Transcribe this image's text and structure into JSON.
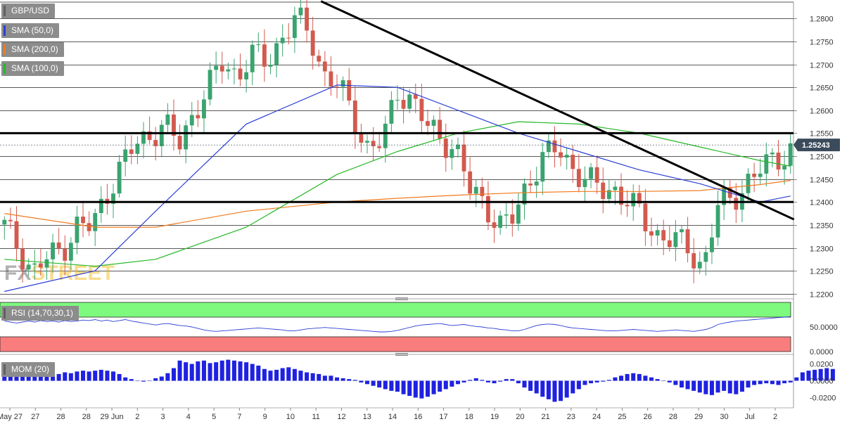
{
  "legend": {
    "symbol": "GBP/USD",
    "sma50": "SMA (50,0)",
    "sma200": "SMA (200,0)",
    "sma100": "SMA (100,0)",
    "rsi": "RSI (14,70,30,1)",
    "mom": "MOM (20)"
  },
  "colors": {
    "up": "#3aa36f",
    "down": "#d25a4e",
    "sma50": "#2b3fd6",
    "sma200": "#f07a1e",
    "sma100": "#25b825",
    "rsi_line": "#2b3fd6",
    "overbought": "#7dfa7d",
    "oversold": "#fa7d7d",
    "mom": "#1f22e0",
    "price_tag": "#3b4b5b"
  },
  "watermark": {
    "part1": "FX",
    "part2": "STREET"
  },
  "chart_data": [
    {
      "type": "candlestick",
      "title": "GBP/USD",
      "ylim": [
        1.2195,
        1.2825
      ],
      "yticks": [
        "1.2800",
        "1.2750",
        "1.2700",
        "1.2650",
        "1.2600",
        "1.2550",
        "1.2500",
        "1.2450",
        "1.2400",
        "1.2350",
        "1.2300",
        "1.2250",
        "1.2200"
      ],
      "x_labels": [
        "May 27",
        "27",
        "28",
        "28",
        "29 Jun",
        "2",
        "3",
        "4",
        "5",
        "7",
        "9",
        "10",
        "11",
        "12",
        "13",
        "14",
        "16",
        "17",
        "18",
        "19",
        "20",
        "21",
        "23",
        "24",
        "25",
        "26",
        "28",
        "29",
        "30",
        "Jul",
        "2"
      ],
      "last_price": "1.25243",
      "horizontal_levels": [
        1.255,
        1.24
      ],
      "trendline": {
        "from": [
          0,
          1.283
        ],
        "to": [
          130,
          1.2362
        ]
      },
      "price_path": [
        1.2345,
        1.23,
        1.225,
        1.2275,
        1.23,
        1.235,
        1.234,
        1.242,
        1.248,
        1.252,
        1.255,
        1.257,
        1.252,
        1.26,
        1.265,
        1.27,
        1.268,
        1.272,
        1.27,
        1.276,
        1.28,
        1.276,
        1.268,
        1.265,
        1.258,
        1.252,
        1.253,
        1.264,
        1.263,
        1.256,
        1.254,
        1.252,
        1.242,
        1.24,
        1.235,
        1.236,
        1.245,
        1.25,
        1.251,
        1.248,
        1.245,
        1.242,
        1.243,
        1.24,
        1.235,
        1.233,
        1.232,
        1.229,
        1.2265,
        1.239,
        1.24,
        1.245,
        1.247,
        1.249,
        1.252
      ],
      "sma50": [
        [
          0,
          1.2205
        ],
        [
          15,
          1.225
        ],
        [
          25,
          1.238
        ],
        [
          40,
          1.257
        ],
        [
          55,
          1.2655
        ],
        [
          65,
          1.265
        ],
        [
          75,
          1.26
        ],
        [
          85,
          1.255
        ],
        [
          95,
          1.251
        ],
        [
          105,
          1.247
        ],
        [
          115,
          1.244
        ],
        [
          125,
          1.24
        ],
        [
          130,
          1.2413
        ]
      ],
      "sma100": [
        [
          0,
          1.2275
        ],
        [
          15,
          1.226
        ],
        [
          25,
          1.2275
        ],
        [
          40,
          1.2345
        ],
        [
          55,
          1.246
        ],
        [
          65,
          1.251
        ],
        [
          75,
          1.255
        ],
        [
          85,
          1.2575
        ],
        [
          95,
          1.257
        ],
        [
          105,
          1.255
        ],
        [
          115,
          1.252
        ],
        [
          125,
          1.249
        ],
        [
          130,
          1.2478
        ]
      ],
      "sma200": [
        [
          0,
          1.2375
        ],
        [
          15,
          1.2345
        ],
        [
          25,
          1.2345
        ],
        [
          40,
          1.238
        ],
        [
          55,
          1.24
        ],
        [
          65,
          1.2408
        ],
        [
          75,
          1.2415
        ],
        [
          85,
          1.242
        ],
        [
          95,
          1.2423
        ],
        [
          105,
          1.2423
        ],
        [
          115,
          1.2425
        ],
        [
          125,
          1.2438
        ],
        [
          130,
          1.2447
        ]
      ]
    },
    {
      "type": "line",
      "title": "RSI (14,70,30,1)",
      "ylim": [
        0,
        100
      ],
      "yticks": [
        "50.0000",
        "0.0000"
      ],
      "bands": {
        "overbought": [
          70,
          100
        ],
        "oversold": [
          0,
          30
        ]
      },
      "values": [
        62,
        60,
        58,
        60,
        62,
        60,
        63,
        61,
        62,
        60,
        63,
        61,
        62,
        64,
        63,
        65,
        62,
        64,
        61,
        63,
        65,
        62,
        60,
        58,
        56,
        54,
        56,
        57,
        55,
        53,
        52,
        50,
        47,
        44,
        42,
        41,
        42,
        43,
        44,
        45,
        46,
        47,
        48,
        47,
        46,
        45,
        44,
        42,
        42,
        44,
        46,
        47,
        48,
        49,
        48,
        47,
        46,
        45,
        44,
        43,
        42,
        41,
        40,
        40,
        41,
        43,
        46,
        49,
        52,
        54,
        55,
        56,
        57,
        55,
        53,
        54,
        55,
        53,
        51,
        50,
        48,
        47,
        45,
        44,
        42,
        42,
        45,
        49,
        53,
        55,
        56,
        55,
        53,
        50,
        48,
        47,
        46,
        45,
        44,
        43,
        42,
        42,
        43,
        44,
        45,
        44,
        43,
        42,
        41,
        42,
        43,
        44,
        43,
        42,
        41,
        43,
        45,
        49,
        55,
        58,
        60,
        62,
        63,
        64,
        65,
        66,
        67,
        68,
        69,
        70,
        71
      ]
    },
    {
      "type": "bar",
      "title": "MOM (20)",
      "ylim": [
        -0.028,
        0.028
      ],
      "yticks": [
        "0.0200",
        "0.0000",
        "-0.0200"
      ],
      "values": [
        0.007,
        0.008,
        0.006,
        0.007,
        0.008,
        0.006,
        0.007,
        0.008,
        0.009,
        0.008,
        0.01,
        0.009,
        0.011,
        0.012,
        0.011,
        0.012,
        0.013,
        0.012,
        0.011,
        0.008,
        0.004,
        0.002,
        0.0,
        -0.001,
        0.0,
        0.003,
        0.005,
        0.009,
        0.015,
        0.024,
        0.022,
        0.02,
        0.023,
        0.024,
        0.021,
        0.022,
        0.024,
        0.025,
        0.024,
        0.023,
        0.022,
        0.02,
        0.018,
        0.014,
        0.012,
        0.013,
        0.015,
        0.016,
        0.014,
        0.012,
        0.01,
        0.009,
        0.008,
        0.006,
        0.006,
        0.004,
        0.003,
        0.002,
        0.001,
        -0.002,
        -0.004,
        -0.006,
        -0.008,
        -0.01,
        -0.012,
        -0.013,
        -0.016,
        -0.018,
        -0.02,
        -0.021,
        -0.019,
        -0.016,
        -0.013,
        -0.01,
        -0.007,
        -0.004,
        -0.002,
        0.001,
        0.003,
        0.001,
        -0.002,
        -0.003,
        -0.001,
        0.002,
        0.002,
        -0.003,
        -0.008,
        -0.012,
        -0.015,
        -0.019,
        -0.022,
        -0.025,
        -0.024,
        -0.02,
        -0.015,
        -0.01,
        -0.005,
        -0.003,
        -0.002,
        -0.001,
        0.001,
        0.004,
        0.006,
        0.008,
        0.009,
        0.008,
        0.006,
        0.004,
        0.002,
        0.0,
        -0.002,
        -0.005,
        -0.008,
        -0.01,
        -0.012,
        -0.014,
        -0.016,
        -0.017,
        -0.014,
        -0.012,
        -0.015,
        -0.016,
        -0.013,
        -0.008,
        -0.005,
        -0.004,
        -0.003,
        -0.004,
        -0.005,
        -0.003,
        -0.002,
        0.004,
        0.01,
        0.012,
        0.013,
        0.014,
        0.015,
        0.014
      ]
    }
  ]
}
